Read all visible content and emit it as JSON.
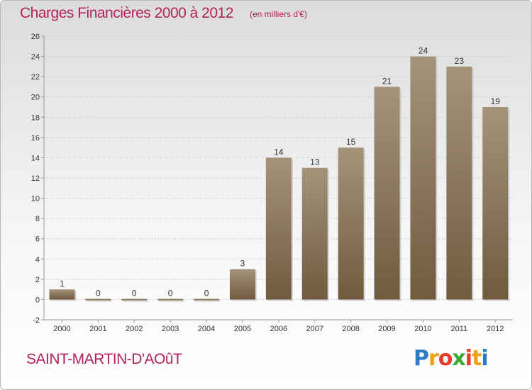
{
  "header": {
    "title": "Charges Financières 2000 à 2012",
    "subtitle": "(en milliers d'€)"
  },
  "footer": {
    "commune": "SAINT-MARTIN-D'AOûT",
    "logo": {
      "letters": [
        "P",
        "r",
        "o",
        "x",
        "i",
        "t",
        "i"
      ],
      "colors": [
        "#2b7bc6",
        "#f0a015",
        "#e8392b",
        "#3aa935",
        "#e8392b",
        "#f0a015",
        "#2b7bc6"
      ]
    }
  },
  "colors": {
    "title": "#b3235c",
    "bar_top": "#a5937a",
    "bar_bottom": "#6f5b3e",
    "bar_shadow": "#bdbdbd",
    "axis": "#9a9a9a",
    "grid": "#cfcfcf",
    "text": "#333333"
  },
  "chart_data": {
    "type": "bar",
    "categories": [
      "2000",
      "2001",
      "2002",
      "2003",
      "2004",
      "2005",
      "2006",
      "2007",
      "2008",
      "2009",
      "2010",
      "2011",
      "2012"
    ],
    "values": [
      1,
      0,
      0,
      0,
      0,
      3,
      14,
      13,
      15,
      21,
      24,
      23,
      19
    ],
    "value_labels": [
      "1",
      "0",
      "0",
      "0",
      "0",
      "3",
      "14",
      "13",
      "15",
      "21",
      "24",
      "23",
      "19"
    ],
    "yticks": [
      -2,
      0,
      2,
      4,
      6,
      8,
      10,
      12,
      14,
      16,
      18,
      20,
      22,
      24,
      26
    ],
    "ylim": [
      -2,
      26
    ],
    "title": "Charges Financières 2000 à 2012",
    "xlabel": "",
    "ylabel": "",
    "grid": true
  }
}
